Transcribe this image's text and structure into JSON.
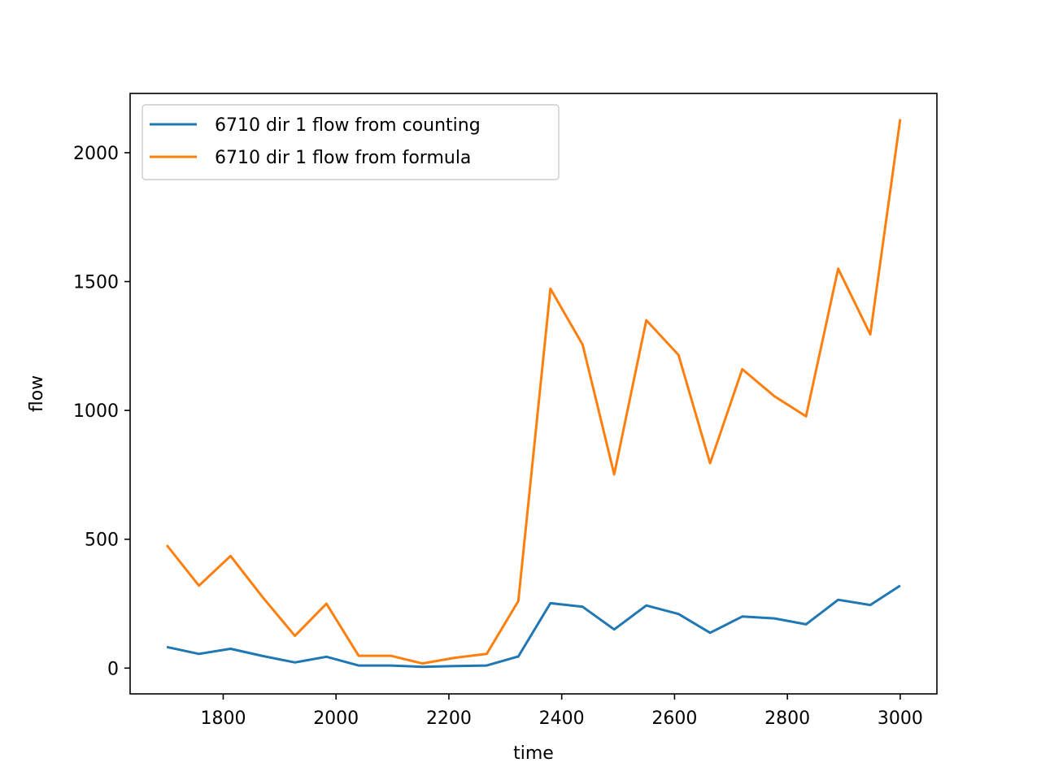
{
  "chart_data": {
    "type": "line",
    "title": "",
    "xlabel": "time",
    "ylabel": "flow",
    "xlim": [
      1635,
      3065
    ],
    "ylim": [
      -100,
      2230
    ],
    "xticks": [
      1800,
      2000,
      2200,
      2400,
      2600,
      2800,
      3000
    ],
    "yticks": [
      0,
      500,
      1000,
      1500,
      2000
    ],
    "grid": false,
    "legend_position": "upper-left",
    "x": [
      1700,
      1757,
      1813,
      1870,
      1927,
      1983,
      2040,
      2097,
      2153,
      2210,
      2267,
      2323,
      2380,
      2437,
      2493,
      2550,
      2607,
      2663,
      2720,
      2777,
      2833,
      2890,
      2947,
      3000
    ],
    "series": [
      {
        "name": "6710 dir 1 flow from counting",
        "color": "#1f77b4",
        "values": [
          82,
          55,
          75,
          47,
          22,
          44,
          10,
          10,
          5,
          8,
          10,
          45,
          252,
          238,
          150,
          243,
          210,
          137,
          200,
          193,
          170,
          265,
          245,
          320
        ]
      },
      {
        "name": "6710 dir 1 flow from formula",
        "color": "#ff7f0e",
        "values": [
          477,
          320,
          435,
          275,
          125,
          250,
          48,
          48,
          18,
          40,
          55,
          260,
          1472,
          1255,
          752,
          1350,
          1215,
          795,
          1160,
          1055,
          977,
          1550,
          1295,
          2130
        ]
      }
    ]
  }
}
